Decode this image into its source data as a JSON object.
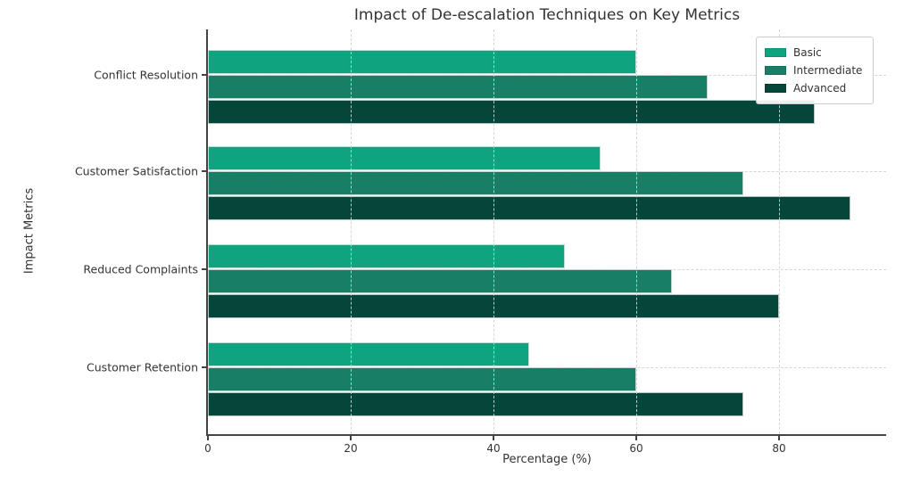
{
  "chart_data": {
    "type": "bar",
    "orientation": "horizontal",
    "title": "Impact of De-escalation Techniques on Key Metrics",
    "xlabel": "Percentage (%)",
    "ylabel": "Impact Metrics",
    "categories": [
      "Conflict Resolution",
      "Customer Satisfaction",
      "Reduced Complaints",
      "Customer Retention"
    ],
    "series": [
      {
        "name": "Basic",
        "color": "#10a37f",
        "values": [
          60,
          55,
          50,
          45
        ]
      },
      {
        "name": "Intermediate",
        "color": "#177f66",
        "values": [
          70,
          75,
          65,
          60
        ]
      },
      {
        "name": "Advanced",
        "color": "#05463a",
        "values": [
          85,
          90,
          80,
          75
        ]
      }
    ],
    "xlim": [
      0,
      95
    ],
    "xticks": [
      0,
      20,
      40,
      60,
      80
    ],
    "grid": "dashed gridlines on both axes, drawn over bars",
    "legend_position": "upper right",
    "colors": {
      "text": "#333333",
      "spine": "#444444",
      "gridline": "#d2d2d2",
      "bar_edge": "#ffffff",
      "legend_border": "#cccccc",
      "background": "#ffffff"
    }
  }
}
